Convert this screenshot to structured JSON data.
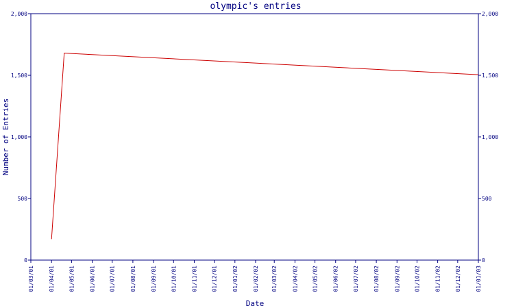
{
  "chart_data": {
    "type": "line",
    "title": "olympic's entries",
    "xlabel": "Date",
    "ylabel": "Number of Entries",
    "ylim": [
      0,
      2000
    ],
    "y_ticks": [
      "0",
      "500",
      "1,000",
      "1,500",
      "2,000"
    ],
    "x_tick_labels": [
      "01/03/01",
      "01/04/01",
      "01/05/01",
      "01/06/01",
      "01/07/01",
      "01/08/01",
      "01/09/01",
      "01/10/01",
      "01/11/01",
      "01/12/01",
      "01/01/02",
      "01/02/02",
      "01/03/02",
      "01/04/02",
      "01/05/02",
      "01/06/02",
      "01/07/02",
      "01/08/02",
      "01/09/02",
      "01/10/02",
      "01/11/02",
      "01/12/02",
      "01/01/03"
    ],
    "grid": false,
    "secondary_y_axis": true,
    "series": [
      {
        "color": "#cc0000",
        "x": [
          "2001-04-01",
          "2001-04-20",
          "2003-01-01"
        ],
        "y": [
          170,
          1680,
          1505
        ]
      }
    ]
  },
  "colors": {
    "axis": "#000080",
    "line": "#cc0000",
    "background": "#ffffff"
  }
}
